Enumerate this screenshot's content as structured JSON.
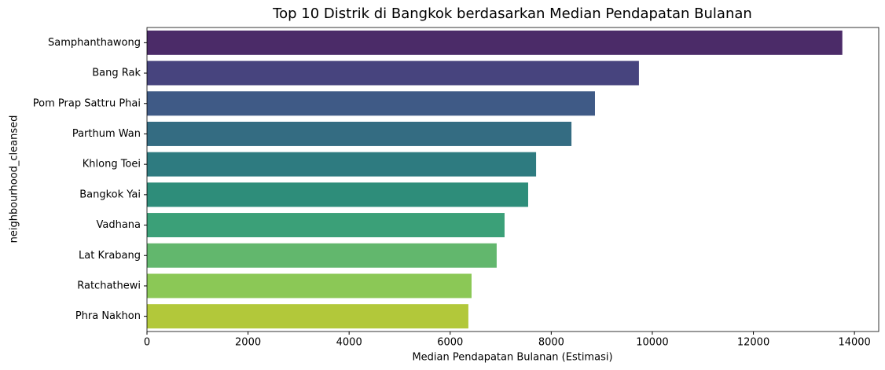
{
  "chart_data": {
    "type": "barh",
    "title": "Top 10 Distrik di Bangkok berdasarkan Median Pendapatan Bulanan",
    "x_label": "Median Pendapatan Bulanan (Estimasi)",
    "y_label": "neighbourhood_cleansed",
    "categories": [
      "Samphanthawong",
      "Bang Rak",
      "Pom Prap Sattru Phai",
      "Parthum Wan",
      "Khlong Toei",
      "Bangkok Yai",
      "Vadhana",
      "Lat Krabang",
      "Ratchathewi",
      "Phra Nakhon"
    ],
    "values": [
      13760,
      9735,
      8865,
      8400,
      7700,
      7543,
      7076,
      6920,
      6423,
      6360
    ],
    "colors": [
      "#4b2b68",
      "#47447e",
      "#3f5a86",
      "#346c82",
      "#2e7b80",
      "#2e8d7a",
      "#3ba078",
      "#62b76d",
      "#8bc856",
      "#b2c83a"
    ],
    "xlim": [
      0,
      14480
    ],
    "xticks": [
      0,
      2000,
      4000,
      6000,
      8000,
      10000,
      12000,
      14000
    ]
  }
}
